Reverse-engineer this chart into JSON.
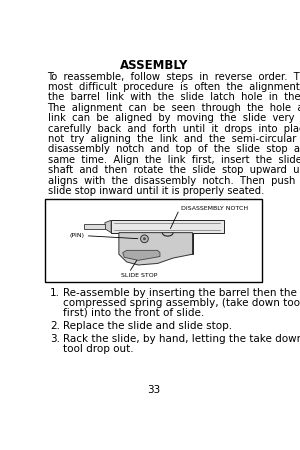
{
  "title": "ASSEMBLY",
  "body_text": "To reassemble, follow steps in reverse order. The most difficult procedure is often the alignment of the barrel link with the slide latch hole in the frame. The alignment can be seen through the hole and link can be aligned by moving the slide very carefully back and forth until it drops into place Do not try aligning the link and the semi-circular disassembly notch and top of the slide stop at the same time. Align the link first, insert the slide stop shaft and then rotate the slide stop upward until it aligns with the disassembly notch. Then push the slide stop inward until it is properly seated.",
  "numbered_items": [
    "Re-assemble by inserting the barrel then the compressed spring assembly, (take down tool first) into the front of slide.",
    "Replace the slide and slide stop.",
    "Rack the slide, by hand, letting the take down tool drop out."
  ],
  "page_number": "33",
  "bg_color": "#ffffff",
  "text_color": "#000000"
}
